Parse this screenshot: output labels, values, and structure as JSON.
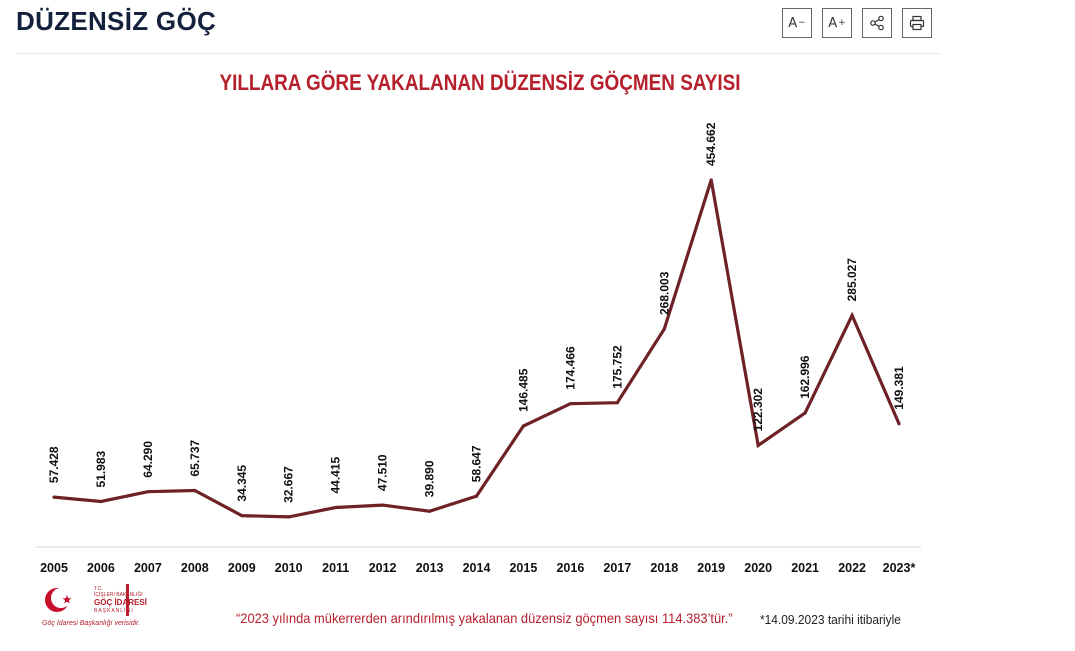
{
  "header": {
    "title": "DÜZENSİZ GÖÇ",
    "tools": {
      "font_decrease": "A",
      "font_decrease_sign": "−",
      "font_increase": "A",
      "font_increase_sign": "+",
      "share_icon": "share-icon",
      "print_icon": "print-icon"
    }
  },
  "chart_data": {
    "type": "line",
    "title": "YILLARA GÖRE YAKALANAN DÜZENSİZ GÖÇMEN SAYISI",
    "categories": [
      "2005",
      "2006",
      "2007",
      "2008",
      "2009",
      "2010",
      "2011",
      "2012",
      "2013",
      "2014",
      "2015",
      "2016",
      "2017",
      "2018",
      "2019",
      "2020",
      "2021",
      "2022",
      "2023*"
    ],
    "values": [
      57428,
      51983,
      64290,
      65737,
      34345,
      32667,
      44415,
      47510,
      39890,
      58647,
      146485,
      174466,
      175752,
      268003,
      454662,
      122302,
      162996,
      285027,
      149381
    ],
    "data_labels": [
      "57.428",
      "51.983",
      "64.290",
      "65.737",
      "34.345",
      "32.667",
      "44.415",
      "47.510",
      "39.890",
      "58.647",
      "146.485",
      "174.466",
      "175.752",
      "268.003",
      "454.662",
      "122.302",
      "162.996",
      "285.027",
      "149.381"
    ],
    "xlabel": "",
    "ylabel": "",
    "ylim": [
      0,
      500000
    ],
    "grid": false,
    "line_color": "#6e2226"
  },
  "footer": {
    "note": "“2023 yılında mükerrerden arındırılmış yakalanan düzensiz göçmen sayısı 114.383’tür.”",
    "date_note": "*14.09.2023 tarihi itibariyle",
    "logo": {
      "top_line": "T.C.",
      "ministry": "İÇİŞLERİ BAKANLIĞI",
      "name": "GÖÇ İDARESİ",
      "name2": "BAŞKANLIĞI",
      "credit": "Göç İdaresi Başkanlığı verisidir."
    }
  }
}
